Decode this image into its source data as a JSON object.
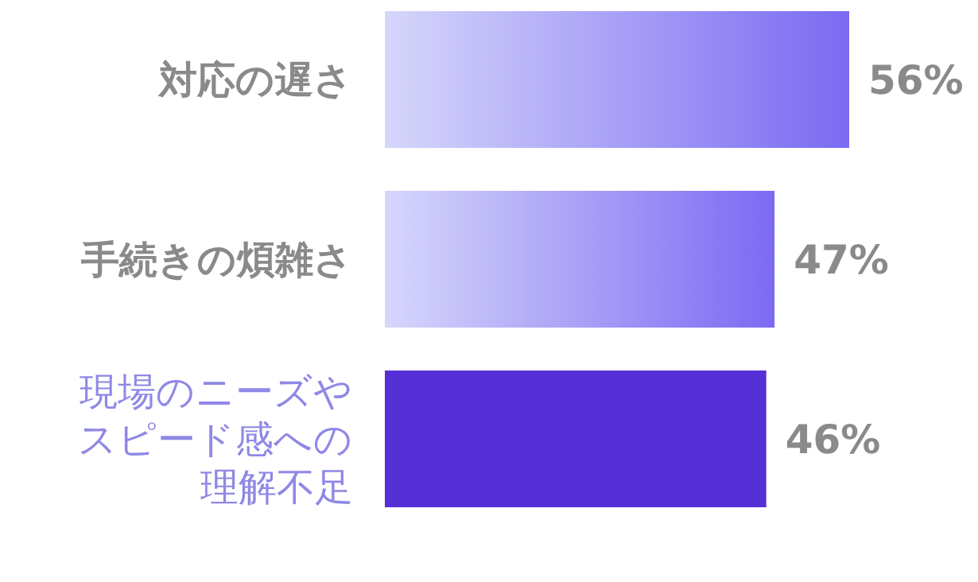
{
  "chart_data": {
    "type": "bar",
    "orientation": "horizontal",
    "categories": [
      "対応の遅さ",
      "手続きの煩雑さ",
      "現場のニーズやスピード感への理解不足"
    ],
    "values": [
      56,
      47,
      46
    ],
    "colors": [
      "#7b6af2",
      "#7b6af2",
      "#5530d6"
    ],
    "value_labels": [
      "56%",
      "47%",
      "46%"
    ]
  }
}
